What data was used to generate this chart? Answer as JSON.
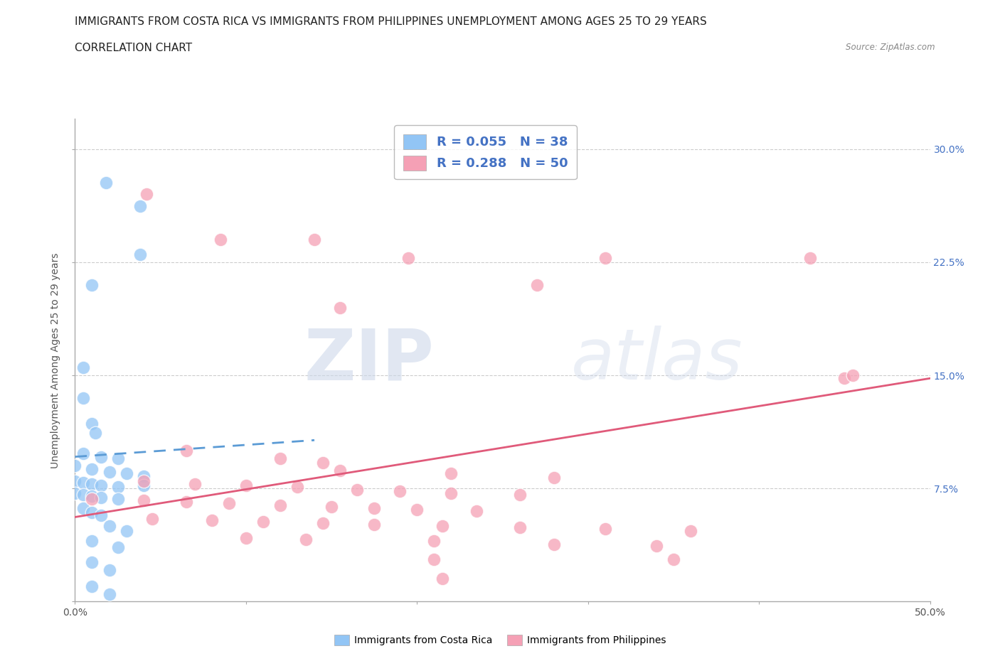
{
  "title_line1": "IMMIGRANTS FROM COSTA RICA VS IMMIGRANTS FROM PHILIPPINES UNEMPLOYMENT AMONG AGES 25 TO 29 YEARS",
  "title_line2": "CORRELATION CHART",
  "source": "Source: ZipAtlas.com",
  "ylabel": "Unemployment Among Ages 25 to 29 years",
  "xlim": [
    0.0,
    0.5
  ],
  "ylim": [
    0.0,
    0.32
  ],
  "xticks": [
    0.0,
    0.1,
    0.2,
    0.3,
    0.4,
    0.5
  ],
  "xtick_labels": [
    "0.0%",
    "",
    "",
    "",
    "",
    "50.0%"
  ],
  "yticks": [
    0.0,
    0.075,
    0.15,
    0.225,
    0.3
  ],
  "ytick_labels": [
    "",
    "7.5%",
    "15.0%",
    "22.5%",
    "30.0%"
  ],
  "hlines": [
    0.075,
    0.15,
    0.225,
    0.3
  ],
  "costa_rica_color": "#92c5f5",
  "philippines_color": "#f5a0b5",
  "costa_rica_R": 0.055,
  "costa_rica_N": 38,
  "philippines_R": 0.288,
  "philippines_N": 50,
  "costa_rica_scatter": [
    [
      0.018,
      0.278
    ],
    [
      0.038,
      0.262
    ],
    [
      0.038,
      0.23
    ],
    [
      0.01,
      0.21
    ],
    [
      0.005,
      0.155
    ],
    [
      0.005,
      0.135
    ],
    [
      0.01,
      0.118
    ],
    [
      0.012,
      0.112
    ],
    [
      0.005,
      0.098
    ],
    [
      0.015,
      0.096
    ],
    [
      0.025,
      0.095
    ],
    [
      0.0,
      0.09
    ],
    [
      0.01,
      0.088
    ],
    [
      0.02,
      0.086
    ],
    [
      0.03,
      0.085
    ],
    [
      0.04,
      0.083
    ],
    [
      0.0,
      0.08
    ],
    [
      0.005,
      0.079
    ],
    [
      0.01,
      0.078
    ],
    [
      0.015,
      0.077
    ],
    [
      0.025,
      0.076
    ],
    [
      0.04,
      0.077
    ],
    [
      0.0,
      0.072
    ],
    [
      0.005,
      0.071
    ],
    [
      0.01,
      0.07
    ],
    [
      0.015,
      0.069
    ],
    [
      0.025,
      0.068
    ],
    [
      0.005,
      0.062
    ],
    [
      0.01,
      0.059
    ],
    [
      0.015,
      0.057
    ],
    [
      0.02,
      0.05
    ],
    [
      0.03,
      0.047
    ],
    [
      0.01,
      0.04
    ],
    [
      0.025,
      0.036
    ],
    [
      0.01,
      0.026
    ],
    [
      0.02,
      0.021
    ],
    [
      0.01,
      0.01
    ],
    [
      0.02,
      0.005
    ]
  ],
  "philippines_scatter": [
    [
      0.042,
      0.27
    ],
    [
      0.085,
      0.24
    ],
    [
      0.14,
      0.24
    ],
    [
      0.195,
      0.228
    ],
    [
      0.31,
      0.228
    ],
    [
      0.43,
      0.228
    ],
    [
      0.27,
      0.21
    ],
    [
      0.155,
      0.195
    ],
    [
      0.065,
      0.1
    ],
    [
      0.12,
      0.095
    ],
    [
      0.145,
      0.092
    ],
    [
      0.155,
      0.087
    ],
    [
      0.22,
      0.085
    ],
    [
      0.28,
      0.082
    ],
    [
      0.04,
      0.08
    ],
    [
      0.07,
      0.078
    ],
    [
      0.1,
      0.077
    ],
    [
      0.13,
      0.076
    ],
    [
      0.165,
      0.074
    ],
    [
      0.19,
      0.073
    ],
    [
      0.22,
      0.072
    ],
    [
      0.26,
      0.071
    ],
    [
      0.01,
      0.068
    ],
    [
      0.04,
      0.067
    ],
    [
      0.065,
      0.066
    ],
    [
      0.09,
      0.065
    ],
    [
      0.12,
      0.064
    ],
    [
      0.15,
      0.063
    ],
    [
      0.175,
      0.062
    ],
    [
      0.2,
      0.061
    ],
    [
      0.235,
      0.06
    ],
    [
      0.045,
      0.055
    ],
    [
      0.08,
      0.054
    ],
    [
      0.11,
      0.053
    ],
    [
      0.145,
      0.052
    ],
    [
      0.175,
      0.051
    ],
    [
      0.215,
      0.05
    ],
    [
      0.26,
      0.049
    ],
    [
      0.31,
      0.048
    ],
    [
      0.36,
      0.047
    ],
    [
      0.1,
      0.042
    ],
    [
      0.135,
      0.041
    ],
    [
      0.21,
      0.04
    ],
    [
      0.28,
      0.038
    ],
    [
      0.34,
      0.037
    ],
    [
      0.21,
      0.028
    ],
    [
      0.35,
      0.028
    ],
    [
      0.215,
      0.015
    ],
    [
      0.45,
      0.148
    ],
    [
      0.455,
      0.15
    ]
  ],
  "costa_rica_trendline": [
    [
      0.0,
      0.096
    ],
    [
      0.14,
      0.107
    ]
  ],
  "philippines_trendline": [
    [
      0.0,
      0.056
    ],
    [
      0.5,
      0.148
    ]
  ],
  "watermark_zip": "ZIP",
  "watermark_atlas": "atlas",
  "background_color": "#ffffff",
  "grid_color": "#cccccc",
  "title_fontsize": 11,
  "axis_label_fontsize": 10,
  "tick_fontsize": 10,
  "legend_fontsize": 13,
  "right_tick_color": "#4472c4",
  "legend_text_color": "#333333"
}
